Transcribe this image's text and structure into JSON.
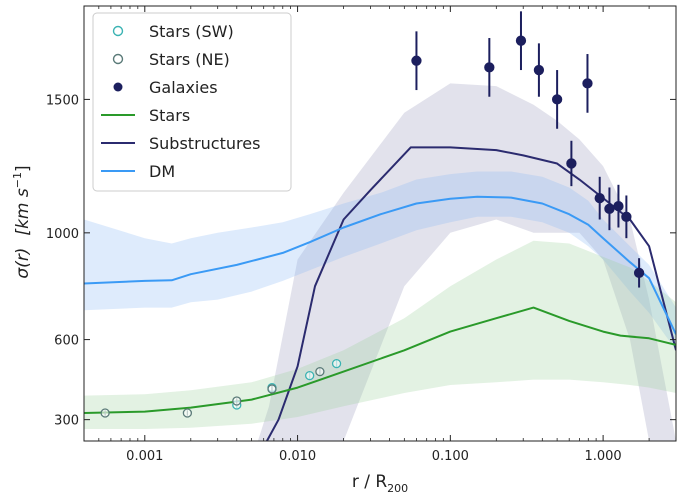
{
  "chart_data": {
    "type": "line",
    "title": "",
    "xlabel": "r / R",
    "xlabel_sub": "200",
    "ylabel_main": "σ(r)",
    "ylabel_unit_a": "[km s",
    "ylabel_unit_sup": "−1",
    "ylabel_unit_b": "]",
    "xscale": "log",
    "xlim": [
      0.0004,
      3.0
    ],
    "ylim": [
      220,
      1850
    ],
    "x_ticks": [
      {
        "value": 0.001,
        "label": "0.001"
      },
      {
        "value": 0.01,
        "label": "0.010"
      },
      {
        "value": 0.1,
        "label": "0.100"
      },
      {
        "value": 1.0,
        "label": "1.000"
      }
    ],
    "y_ticks": [
      {
        "value": 300,
        "label": "300"
      },
      {
        "value": 600,
        "label": "600"
      },
      {
        "value": 1000,
        "label": "1000"
      },
      {
        "value": 1500,
        "label": "1500"
      }
    ],
    "legend_position": "top-left",
    "legend": [
      {
        "label": "Stars (SW)",
        "kind": "open-circle",
        "color": "#3bb3b3"
      },
      {
        "label": "Stars (NE)",
        "kind": "open-circle",
        "color": "#5a7a78"
      },
      {
        "label": "Galaxies",
        "kind": "filled-circle",
        "color": "#1c1f5e"
      },
      {
        "label": "Stars",
        "kind": "line",
        "color": "#2a9a2a"
      },
      {
        "label": "Substructures",
        "kind": "line",
        "color": "#2b2b6f"
      },
      {
        "label": "DM",
        "kind": "line",
        "color": "#3a9af5"
      }
    ],
    "bands": [
      {
        "name": "Substructures",
        "color": "#7a7aaa",
        "opacity": 0.22,
        "x": [
          0.0055,
          0.0065,
          0.01,
          0.02,
          0.05,
          0.1,
          0.2,
          0.35,
          0.5,
          0.7,
          1.0,
          1.5,
          2.0,
          3.0
        ],
        "upper": [
          220,
          350,
          900,
          1150,
          1450,
          1560,
          1550,
          1480,
          1420,
          1350,
          1250,
          1050,
          750,
          220
        ],
        "lower": [
          220,
          220,
          220,
          220,
          800,
          1000,
          1050,
          1000,
          1000,
          1000,
          900,
          600,
          220,
          220
        ]
      },
      {
        "name": "DM",
        "color": "#8ab8f5",
        "opacity": 0.28,
        "x": [
          0.0004,
          0.001,
          0.0015,
          0.002,
          0.003,
          0.005,
          0.008,
          0.012,
          0.02,
          0.035,
          0.06,
          0.1,
          0.15,
          0.25,
          0.4,
          0.6,
          0.8,
          1.0,
          1.5,
          2.0,
          3.0
        ],
        "upper": [
          1050,
          980,
          960,
          980,
          1000,
          1020,
          1040,
          1070,
          1110,
          1150,
          1200,
          1220,
          1230,
          1230,
          1210,
          1170,
          1120,
          1050,
          950,
          880,
          720
        ],
        "lower": [
          710,
          720,
          720,
          740,
          750,
          780,
          820,
          860,
          910,
          960,
          1010,
          1040,
          1060,
          1060,
          1040,
          1000,
          950,
          900,
          780,
          700,
          560
        ]
      },
      {
        "name": "Stars",
        "color": "#9ccf9c",
        "opacity": 0.28,
        "x": [
          0.0004,
          0.001,
          0.002,
          0.005,
          0.01,
          0.02,
          0.05,
          0.1,
          0.2,
          0.35,
          0.6,
          1.0,
          1.5,
          2.0,
          3.0
        ],
        "upper": [
          390,
          395,
          410,
          440,
          490,
          560,
          680,
          800,
          900,
          970,
          960,
          910,
          870,
          820,
          740
        ],
        "lower": [
          265,
          265,
          270,
          285,
          310,
          350,
          400,
          430,
          440,
          450,
          450,
          440,
          430,
          420,
          400
        ]
      }
    ],
    "series": [
      {
        "name": "Substructures",
        "color": "#2b2b6f",
        "x": [
          0.0063,
          0.0075,
          0.01,
          0.013,
          0.02,
          0.03,
          0.055,
          0.1,
          0.2,
          0.3,
          0.5,
          0.7,
          1.0,
          1.5,
          2.0,
          3.0
        ],
        "y": [
          220,
          300,
          500,
          800,
          1050,
          1160,
          1320,
          1320,
          1310,
          1290,
          1260,
          1200,
          1130,
          1050,
          950,
          560
        ]
      },
      {
        "name": "DM",
        "color": "#3a9af5",
        "x": [
          0.0004,
          0.001,
          0.0015,
          0.002,
          0.004,
          0.008,
          0.012,
          0.02,
          0.035,
          0.06,
          0.1,
          0.15,
          0.25,
          0.4,
          0.6,
          0.8,
          1.0,
          1.5,
          2.0,
          3.0
        ],
        "y": [
          810,
          820,
          822,
          845,
          880,
          925,
          965,
          1020,
          1070,
          1110,
          1128,
          1135,
          1132,
          1110,
          1070,
          1030,
          980,
          890,
          830,
          620
        ]
      },
      {
        "name": "Stars",
        "color": "#2a9a2a",
        "x": [
          0.0004,
          0.001,
          0.002,
          0.005,
          0.01,
          0.02,
          0.05,
          0.1,
          0.2,
          0.35,
          0.6,
          1.0,
          1.3,
          2.0,
          3.0
        ],
        "y": [
          325,
          330,
          345,
          375,
          420,
          480,
          560,
          630,
          680,
          720,
          670,
          630,
          615,
          605,
          580
        ]
      }
    ],
    "points": [
      {
        "name": "Stars (SW)",
        "color": "#3bb3b3",
        "x": [
          0.004,
          0.0068,
          0.012,
          0.018
        ],
        "y": [
          355,
          420,
          465,
          510
        ],
        "yerr": [
          12,
          12,
          12,
          15
        ]
      },
      {
        "name": "Stars (NE)",
        "color": "#5a7a78",
        "x": [
          0.00055,
          0.0019,
          0.004,
          0.0068,
          0.014
        ],
        "y": [
          325,
          325,
          370,
          415,
          480
        ],
        "yerr": [
          10,
          10,
          10,
          12,
          15
        ]
      },
      {
        "name": "Galaxies",
        "color": "#1c1f5e",
        "x": [
          0.06,
          0.18,
          0.29,
          0.38,
          0.5,
          0.62,
          0.79,
          0.95,
          1.1,
          1.26,
          1.42,
          1.72
        ],
        "y": [
          1645,
          1620,
          1720,
          1610,
          1500,
          1260,
          1560,
          1130,
          1090,
          1100,
          1060,
          850
        ],
        "yerr": [
          110,
          110,
          110,
          100,
          110,
          85,
          110,
          80,
          80,
          80,
          80,
          55
        ]
      }
    ]
  }
}
